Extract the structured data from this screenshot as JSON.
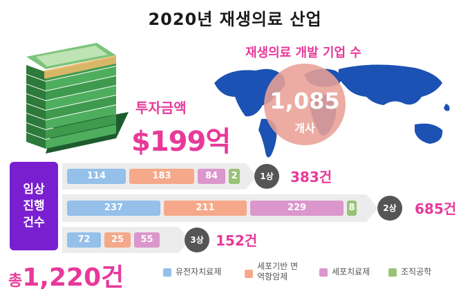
{
  "title": "2020년 재생의료 산업",
  "investment": {
    "label": "투자금액",
    "value": "$199억"
  },
  "developers": {
    "label": "재생의료 개발 기업 수",
    "value": "1,085",
    "unit": "개사"
  },
  "clinical": {
    "label_lines": [
      "임상",
      "진행",
      "건수"
    ],
    "total_prefix": "총",
    "total_value": "1,220건"
  },
  "colors": {
    "gene": "#94c0ea",
    "cell_immuno": "#f5a98a",
    "cell": "#db96cc",
    "tissue": "#99c277",
    "accent": "#e8399a",
    "purple": "#7a1fd0",
    "rank": "#555555"
  },
  "chart_data": {
    "type": "bar",
    "stacked": true,
    "orientation": "horizontal",
    "categories": [
      "1상",
      "2상",
      "3상"
    ],
    "totals": [
      "383건",
      "685건",
      "152건"
    ],
    "series": [
      {
        "name": "유전자치료제",
        "values": [
          114,
          237,
          72
        ]
      },
      {
        "name": "세포기반 면역항암제",
        "values": [
          183,
          211,
          25
        ]
      },
      {
        "name": "세포치료제",
        "values": [
          84,
          229,
          55
        ]
      },
      {
        "name": "조직공학",
        "values": [
          2,
          8,
          null
        ]
      }
    ],
    "legend": "bottom"
  }
}
